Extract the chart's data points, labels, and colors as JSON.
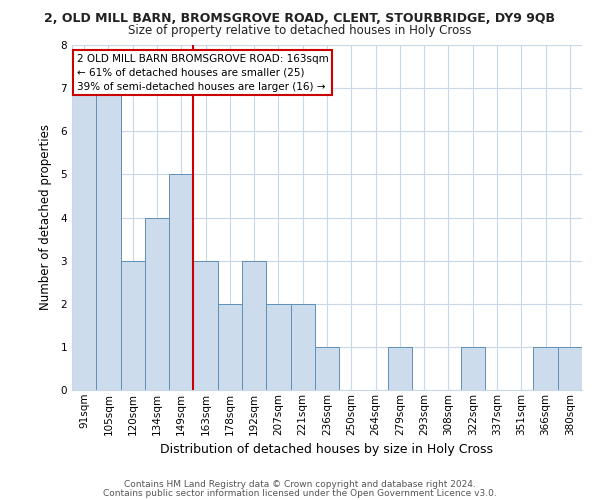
{
  "title_line1": "2, OLD MILL BARN, BROMSGROVE ROAD, CLENT, STOURBRIDGE, DY9 9QB",
  "title_line2": "Size of property relative to detached houses in Holy Cross",
  "xlabel": "Distribution of detached houses by size in Holy Cross",
  "ylabel": "Number of detached properties",
  "bar_labels": [
    "91sqm",
    "105sqm",
    "120sqm",
    "134sqm",
    "149sqm",
    "163sqm",
    "178sqm",
    "192sqm",
    "207sqm",
    "221sqm",
    "236sqm",
    "250sqm",
    "264sqm",
    "279sqm",
    "293sqm",
    "308sqm",
    "322sqm",
    "337sqm",
    "351sqm",
    "366sqm",
    "380sqm"
  ],
  "bar_values": [
    7,
    7,
    3,
    4,
    5,
    3,
    2,
    3,
    2,
    2,
    1,
    0,
    0,
    1,
    0,
    0,
    1,
    0,
    0,
    1,
    1
  ],
  "bar_color": "#cddcec",
  "bar_edge_color": "#6090b8",
  "highlight_bar_index": 5,
  "highlight_line_color": "#cc0000",
  "ylim": [
    0,
    8
  ],
  "yticks": [
    0,
    1,
    2,
    3,
    4,
    5,
    6,
    7,
    8
  ],
  "annotation_title": "2 OLD MILL BARN BROMSGROVE ROAD: 163sqm",
  "annotation_line1": "← 61% of detached houses are smaller (25)",
  "annotation_line2": "39% of semi-detached houses are larger (16) →",
  "footer_line1": "Contains HM Land Registry data © Crown copyright and database right 2024.",
  "footer_line2": "Contains public sector information licensed under the Open Government Licence v3.0.",
  "background_color": "#ffffff",
  "grid_color": "#c8d8e8",
  "title1_fontsize": 9.0,
  "title2_fontsize": 8.5,
  "xlabel_fontsize": 9.0,
  "ylabel_fontsize": 8.5,
  "tick_fontsize": 7.5,
  "footer_fontsize": 6.5,
  "annot_fontsize": 7.5
}
